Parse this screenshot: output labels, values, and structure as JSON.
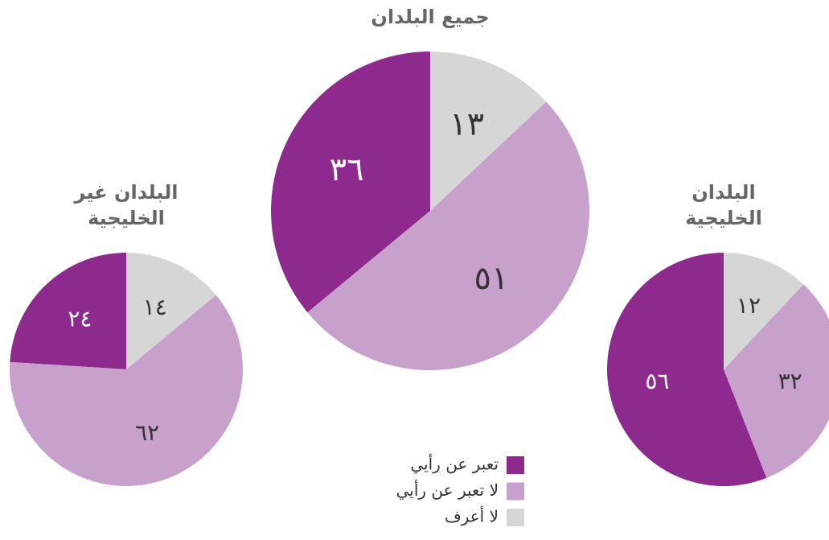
{
  "chart_data": [
    {
      "type": "pie",
      "title": [
        "البلدان غير",
        "الخليجية"
      ],
      "categories": [
        "تعبر عن رأيي",
        "لا تعبر عن رأيي",
        "لا أعرف"
      ],
      "values": [
        24,
        62,
        14
      ],
      "value_labels": [
        "٢٤",
        "٦٢",
        "١٤"
      ],
      "colors": [
        "#8e2a8e",
        "#c8a0cc",
        "#d6d6d6"
      ]
    },
    {
      "type": "pie",
      "title": [
        "جميع البلدان"
      ],
      "categories": [
        "تعبر عن رأيي",
        "لا تعبر عن رأيي",
        "لا أعرف"
      ],
      "values": [
        36,
        51,
        13
      ],
      "value_labels": [
        "٣٦",
        "٥١",
        "١٣"
      ],
      "colors": [
        "#8e2a8e",
        "#c8a0cc",
        "#d6d6d6"
      ],
      "legend": "bottom"
    },
    {
      "type": "pie",
      "title": [
        "البلدان",
        "الخليجية"
      ],
      "categories": [
        "تعبر عن رأيي",
        "لا تعبر عن رأيي",
        "لا أعرف"
      ],
      "values": [
        56,
        32,
        12
      ],
      "value_labels": [
        "٥٦",
        "٣٢",
        "١٢"
      ],
      "colors": [
        "#8e2a8e",
        "#c8a0cc",
        "#d6d6d6"
      ]
    }
  ]
}
